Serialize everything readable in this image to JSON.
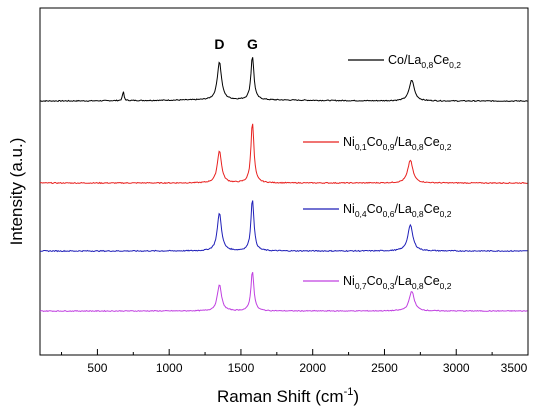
{
  "chart_data": {
    "type": "line",
    "xlabel": "Raman Shift (cm",
    "xlabel_sup": "-1",
    "xlabel_end": ")",
    "ylabel": "Intensity (a.u.)",
    "xlim": [
      100,
      3500
    ],
    "xticks": [
      500,
      1000,
      1500,
      2000,
      2500,
      3000,
      3500
    ],
    "xtick_labels": [
      "500",
      "1000",
      "1500",
      "2000",
      "2500",
      "3000",
      "3500"
    ],
    "yticks_shown": false,
    "grid": false,
    "annotations": [
      {
        "text": "D",
        "x": 1350
      },
      {
        "text": "G",
        "x": 1580
      }
    ],
    "legend_placement": "right, next to each curve",
    "series": [
      {
        "name": "Co/La0.8Ce0.2",
        "legend_parts": [
          [
            "Co/La",
            ""
          ],
          [
            "0,8",
            "sub"
          ],
          [
            "Ce",
            ""
          ],
          [
            "0,2",
            "sub"
          ]
        ],
        "color": "#000000",
        "peaks": [
          {
            "x": 680,
            "height": 0.25
          },
          {
            "x": 1350,
            "height": 1.0
          },
          {
            "x": 1580,
            "height": 1.15
          },
          {
            "x": 2690,
            "height": 0.55
          }
        ]
      },
      {
        "name": "Ni0.1Co0.9/La0.8Ce0.2",
        "legend_parts": [
          [
            "Ni",
            ""
          ],
          [
            "0,1",
            "sub"
          ],
          [
            "Co",
            ""
          ],
          [
            "0,9",
            "sub"
          ],
          [
            "/La",
            ""
          ],
          [
            "0,8",
            "sub"
          ],
          [
            "Ce",
            ""
          ],
          [
            "0,2",
            "sub"
          ]
        ],
        "color": "#e8211f",
        "peaks": [
          {
            "x": 1350,
            "height": 0.85
          },
          {
            "x": 1580,
            "height": 1.6
          },
          {
            "x": 2680,
            "height": 0.6
          }
        ]
      },
      {
        "name": "Ni0.4Co0.6/La0.8Ce0.2",
        "legend_parts": [
          [
            "Ni",
            ""
          ],
          [
            "0,4",
            "sub"
          ],
          [
            "Co",
            ""
          ],
          [
            "0,6",
            "sub"
          ],
          [
            "/La",
            ""
          ],
          [
            "0,8",
            "sub"
          ],
          [
            "Ce",
            ""
          ],
          [
            "0,2",
            "sub"
          ]
        ],
        "color": "#1f1fb8",
        "peaks": [
          {
            "x": 1350,
            "height": 0.95
          },
          {
            "x": 1580,
            "height": 1.3
          },
          {
            "x": 2680,
            "height": 0.65
          }
        ]
      },
      {
        "name": "Ni0.7Co0.3/La0.8Ce0.2",
        "legend_parts": [
          [
            "Ni",
            ""
          ],
          [
            "0,7",
            "sub"
          ],
          [
            "Co",
            ""
          ],
          [
            "0,3",
            "sub"
          ],
          [
            "/La",
            ""
          ],
          [
            "0,8",
            "sub"
          ],
          [
            "Ce",
            ""
          ],
          [
            "0,2",
            "sub"
          ]
        ],
        "color": "#c040e0",
        "peaks": [
          {
            "x": 1350,
            "height": 0.8
          },
          {
            "x": 1580,
            "height": 1.2
          },
          {
            "x": 2690,
            "height": 0.6
          }
        ]
      }
    ]
  }
}
